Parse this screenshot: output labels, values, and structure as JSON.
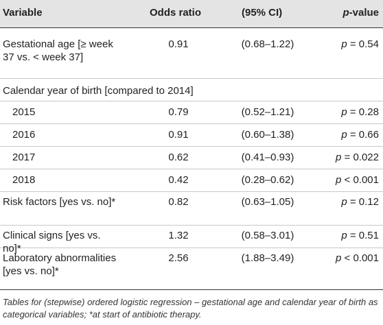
{
  "header": {
    "variable": "Variable",
    "odds_ratio": "Odds ratio",
    "ci": "(95% CI)",
    "p_italic": "p",
    "p_rest": "-value"
  },
  "rows": [
    {
      "variable": "Gestational age [≥ week 37 vs. < week 37]",
      "or": "0.91",
      "ci": "(0.68–1.22)",
      "p_sym": "p",
      "p_val": " = 0.54"
    },
    {
      "variable": "Calendar year of birth [compared to 2014]",
      "or": "",
      "ci": "",
      "p_sym": "",
      "p_val": ""
    },
    {
      "variable": "2015",
      "or": "0.79",
      "ci": "(0.52–1.21)",
      "p_sym": "p",
      "p_val": " = 0.28"
    },
    {
      "variable": "2016",
      "or": "0.91",
      "ci": "(0.60–1.38)",
      "p_sym": "p",
      "p_val": " = 0.66"
    },
    {
      "variable": "2017",
      "or": "0.62",
      "ci": "(0.41–0.93)",
      "p_sym": "p",
      "p_val": " = 0.022"
    },
    {
      "variable": "2018",
      "or": "0.42",
      "ci": "(0.28–0.62)",
      "p_sym": "p",
      "p_val": " < 0.001"
    },
    {
      "variable": "Risk factors [yes vs. no]*",
      "or": "0.82",
      "ci": "(0.63–1.05)",
      "p_sym": "p",
      "p_val": " = 0.12"
    },
    {
      "variable": "Clinical signs [yes vs. no]*",
      "or": "1.32",
      "ci": "(0.58–3.01)",
      "p_sym": "p",
      "p_val": " = 0.51"
    },
    {
      "variable": "Laboratory abnormalities [yes vs. no]*",
      "or": "2.56",
      "ci": "(1.88–3.49)",
      "p_sym": "p",
      "p_val": " < 0.001"
    }
  ],
  "footnote": "Tables for (stepwise) ordered logistic regression – gestational age and calendar year of birth as categorical variables; *at start of antibiotic therapy."
}
